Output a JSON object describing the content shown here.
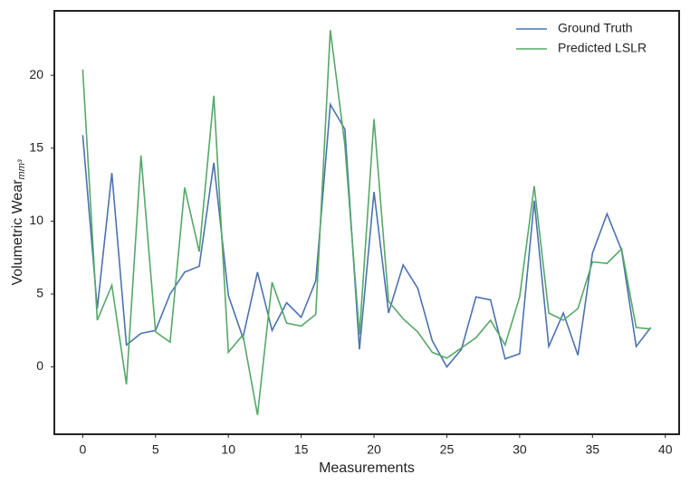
{
  "chart_data": {
    "type": "line",
    "xlabel": "Measurements",
    "ylabel": "Volumetric Wear",
    "ylabel_subscript": "mm³",
    "x": [
      0,
      1,
      2,
      3,
      4,
      5,
      6,
      7,
      8,
      9,
      10,
      11,
      12,
      13,
      14,
      15,
      16,
      17,
      18,
      19,
      20,
      21,
      22,
      23,
      24,
      25,
      26,
      27,
      28,
      29,
      30,
      31,
      32,
      33,
      34,
      35,
      36,
      37,
      38,
      39
    ],
    "series": [
      {
        "name": "Ground Truth",
        "color": "#4c72b0",
        "values": [
          15.9,
          4.0,
          13.3,
          1.5,
          2.3,
          2.5,
          5.0,
          6.5,
          6.9,
          14.0,
          4.9,
          2.0,
          6.5,
          2.5,
          4.4,
          3.4,
          5.9,
          18.0,
          16.3,
          1.2,
          12.0,
          3.7,
          7.0,
          5.4,
          1.8,
          0.0,
          1.2,
          4.8,
          4.6,
          0.55,
          0.9,
          11.4,
          1.4,
          3.7,
          0.8,
          7.8,
          10.5,
          8.0,
          1.4,
          2.7
        ]
      },
      {
        "name": "Predicted LSLR",
        "color": "#55a868",
        "values": [
          20.4,
          3.2,
          5.6,
          -1.2,
          14.5,
          2.4,
          1.7,
          12.3,
          7.9,
          18.6,
          1.0,
          2.2,
          -3.3,
          5.8,
          3.0,
          2.8,
          3.6,
          23.1,
          15.2,
          2.2,
          17.0,
          4.5,
          3.3,
          2.4,
          1.0,
          0.6,
          1.3,
          2.0,
          3.2,
          1.5,
          4.8,
          12.4,
          3.7,
          3.2,
          4.0,
          7.2,
          7.1,
          8.1,
          2.7,
          2.6
        ]
      }
    ],
    "xlim": [
      -1.95,
      40.95
    ],
    "ylim": [
      -4.62,
      24.42
    ],
    "xticks": [
      0,
      5,
      10,
      15,
      20,
      25,
      30,
      35,
      40
    ],
    "yticks": [
      0,
      5,
      10,
      15,
      20
    ],
    "grid": false,
    "legend": "upper right"
  }
}
